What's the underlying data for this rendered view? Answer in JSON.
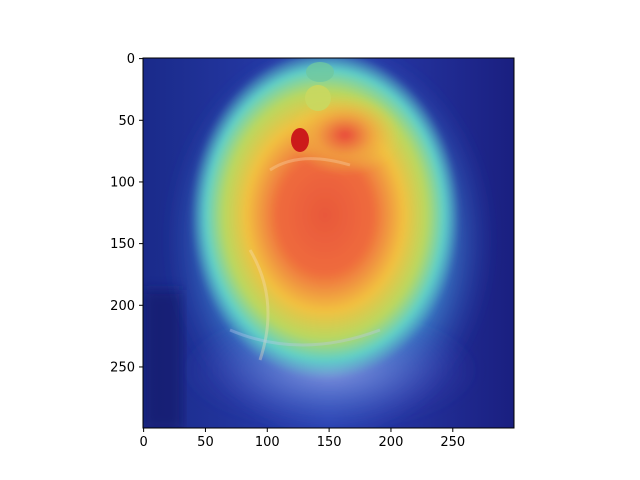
{
  "figure": {
    "x_ticks": [
      "0",
      "50",
      "100",
      "150",
      "200",
      "250"
    ],
    "y_ticks": [
      "0",
      "50",
      "100",
      "150",
      "200",
      "250"
    ],
    "image_extent": {
      "x": [
        0,
        299
      ],
      "y": [
        0,
        299
      ]
    },
    "overlay_colormap": "jet",
    "background_color": "#1b1f9a"
  }
}
